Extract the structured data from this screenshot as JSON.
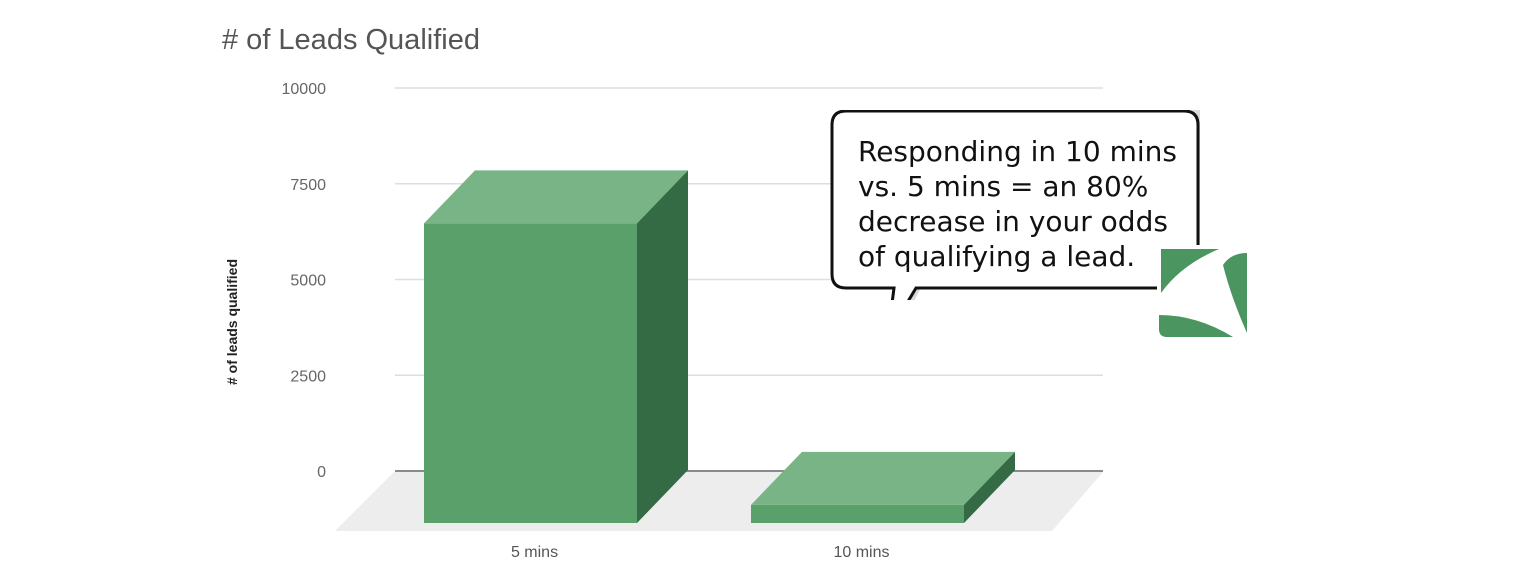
{
  "chart_data": {
    "type": "bar",
    "title": "# of Leads Qualified",
    "ylabel": "# of leads qualified",
    "xlabel": "",
    "categories": [
      "5 mins",
      "10 mins"
    ],
    "values": [
      7850,
      500
    ],
    "ylim": [
      0,
      10000
    ],
    "yticks": [
      0,
      2500,
      5000,
      7500,
      10000
    ],
    "grid": true,
    "style": "3d"
  },
  "colors": {
    "bar_front": "#59a06b",
    "bar_top": "#78b486",
    "bar_side": "#346a44",
    "grid": "#d9dfe6",
    "floor": "#ededed",
    "logo": "#4a9560"
  },
  "callout": {
    "lines": [
      "Responding in 10 mins",
      "vs. 5 mins = an 80%",
      "decrease in your odds",
      "of qualifying a lead."
    ]
  },
  "logo": {
    "icon": "brand-logo-icon"
  }
}
